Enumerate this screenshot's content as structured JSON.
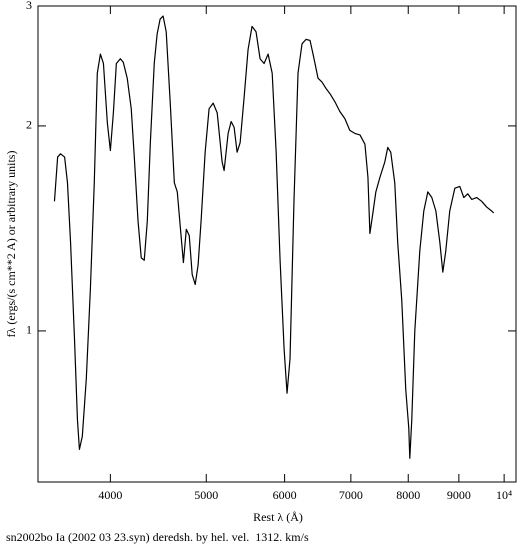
{
  "chart_data": {
    "type": "line",
    "title": "sn2002bo Ia (2002 03 23.syn) deredsh. by hel. vel.  1312. km/s",
    "xlabel": "Rest λ (Å)",
    "ylabel": "fλ (ergs/(s cm**2 A) or arbitrary units)",
    "xscale": "log",
    "yscale": "log",
    "xlim": [
      3380,
      10280
    ],
    "ylim": [
      0.6,
      3
    ],
    "xticks": [
      4000,
      5000,
      6000,
      7000,
      8000,
      9000,
      {
        "value": 10000,
        "label": "10⁴"
      }
    ],
    "yticks": [
      1,
      2,
      3
    ],
    "series": [
      {
        "color": "#000000",
        "x": [
          3512,
          3538,
          3562,
          3596,
          3620,
          3646,
          3680,
          3705,
          3722,
          3747,
          3782,
          3818,
          3853,
          3880,
          3908,
          3936,
          3972,
          4000,
          4028,
          4056,
          4094,
          4122,
          4160,
          4199,
          4229,
          4266,
          4298,
          4328,
          4359,
          4390,
          4430,
          4460,
          4491,
          4522,
          4555,
          4598,
          4642,
          4674,
          4707,
          4741,
          4773,
          4806,
          4839,
          4873,
          4906,
          4940,
          4987,
          5033,
          5081,
          5129,
          5188,
          5212,
          5261,
          5298,
          5335,
          5372,
          5410,
          5460,
          5511,
          5562,
          5614,
          5667,
          5720,
          5774,
          5829,
          5883,
          5937,
          5993,
          6034,
          6076,
          6132,
          6190,
          6248,
          6307,
          6366,
          6425,
          6485,
          6545,
          6607,
          6668,
          6745,
          6823,
          6903,
          6983,
          7066,
          7150,
          7233,
          7284,
          7317,
          7368,
          7419,
          7489,
          7575,
          7628,
          7681,
          7753,
          7806,
          7880,
          7954,
          8010,
          8029,
          8066,
          8123,
          8218,
          8295,
          8373,
          8451,
          8531,
          8610,
          8670,
          8730,
          8811,
          8916,
          9020,
          9104,
          9188,
          9274,
          9381,
          9491,
          9602,
          9714,
          9759
        ],
        "values": [
          1.55,
          1.8,
          1.82,
          1.8,
          1.65,
          1.35,
          0.97,
          0.74,
          0.67,
          0.7,
          0.85,
          1.15,
          1.65,
          2.39,
          2.55,
          2.47,
          2.02,
          1.84,
          2.09,
          2.47,
          2.51,
          2.48,
          2.35,
          2.12,
          1.8,
          1.45,
          1.28,
          1.27,
          1.45,
          1.89,
          2.47,
          2.73,
          2.87,
          2.9,
          2.75,
          2.16,
          1.65,
          1.6,
          1.42,
          1.26,
          1.41,
          1.38,
          1.21,
          1.17,
          1.25,
          1.45,
          1.83,
          2.12,
          2.16,
          2.09,
          1.77,
          1.72,
          1.95,
          2.03,
          1.99,
          1.83,
          1.89,
          2.2,
          2.59,
          2.8,
          2.75,
          2.51,
          2.47,
          2.55,
          2.39,
          1.83,
          1.27,
          0.94,
          0.81,
          0.91,
          1.55,
          2.39,
          2.64,
          2.68,
          2.67,
          2.51,
          2.35,
          2.32,
          2.27,
          2.23,
          2.17,
          2.1,
          2.05,
          1.97,
          1.95,
          1.94,
          1.88,
          1.68,
          1.39,
          1.49,
          1.6,
          1.68,
          1.77,
          1.86,
          1.83,
          1.65,
          1.35,
          1.11,
          0.82,
          0.72,
          0.65,
          0.74,
          1.0,
          1.31,
          1.5,
          1.6,
          1.57,
          1.5,
          1.35,
          1.22,
          1.31,
          1.5,
          1.62,
          1.63,
          1.57,
          1.59,
          1.56,
          1.57,
          1.55,
          1.52,
          1.5,
          1.49
        ]
      }
    ]
  }
}
